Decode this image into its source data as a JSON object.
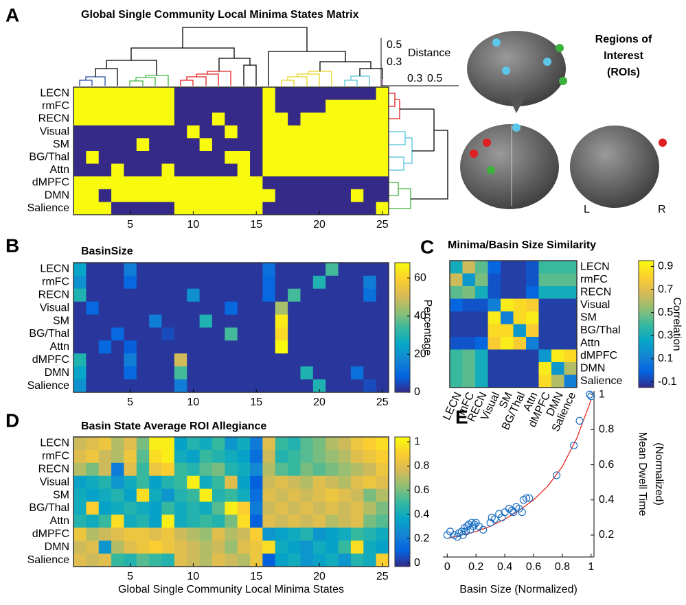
{
  "panel_labels": [
    "A",
    "B",
    "C",
    "D",
    "E"
  ],
  "roi_title": [
    "Regions of",
    "Interest",
    "(ROIs)"
  ],
  "hemisphere_labels": [
    "L",
    "R"
  ],
  "chart_data": [
    {
      "type": "heatmap",
      "title": "Global Single Community Local Minima States Matrix",
      "categories": [
        "LECN",
        "rmFC",
        "RECN",
        "Visual",
        "SM",
        "BG/Thal",
        "Attn",
        "dMPFC",
        "DMN",
        "Salience"
      ],
      "colormap": "parula",
      "clim": [
        0,
        1
      ],
      "xlim": [
        0.5,
        25.5
      ],
      "xticks": [
        5,
        10,
        15,
        20,
        25
      ],
      "dendrogram_label": "Distance",
      "dendrogram_ticks_top": [
        0.5,
        0.3
      ],
      "dendrogram_ticks_right": [
        0.3,
        0.5
      ],
      "values": [
        [
          1,
          1,
          1,
          1,
          1,
          1,
          1,
          1,
          0,
          0,
          0,
          0,
          0,
          0,
          0,
          1,
          0,
          0,
          0,
          0,
          0,
          0,
          0,
          0,
          1
        ],
        [
          1,
          1,
          1,
          1,
          1,
          1,
          1,
          1,
          0,
          0,
          0,
          0,
          0,
          0,
          0,
          1,
          0,
          0,
          0,
          0,
          1,
          1,
          1,
          1,
          1
        ],
        [
          1,
          1,
          1,
          1,
          1,
          1,
          1,
          1,
          0,
          0,
          0,
          1,
          0,
          0,
          0,
          1,
          1,
          0,
          1,
          1,
          1,
          1,
          1,
          1,
          1
        ],
        [
          0,
          0,
          0,
          0,
          0,
          0,
          0,
          0,
          0,
          1,
          0,
          0,
          1,
          0,
          0,
          1,
          1,
          1,
          1,
          1,
          1,
          1,
          1,
          1,
          1
        ],
        [
          0,
          0,
          0,
          0,
          0,
          1,
          0,
          0,
          0,
          0,
          1,
          0,
          0,
          0,
          0,
          1,
          1,
          1,
          1,
          1,
          1,
          1,
          1,
          1,
          1
        ],
        [
          0,
          1,
          0,
          0,
          0,
          0,
          0,
          0,
          0,
          0,
          0,
          0,
          1,
          1,
          0,
          1,
          1,
          1,
          1,
          1,
          1,
          1,
          1,
          1,
          1
        ],
        [
          0,
          0,
          0,
          1,
          0,
          0,
          0,
          1,
          0,
          0,
          0,
          0,
          0,
          1,
          0,
          1,
          1,
          1,
          1,
          1,
          1,
          1,
          1,
          1,
          1
        ],
        [
          1,
          1,
          1,
          1,
          1,
          1,
          1,
          1,
          1,
          1,
          1,
          1,
          1,
          1,
          1,
          0,
          0,
          0,
          0,
          0,
          0,
          0,
          0,
          0,
          0
        ],
        [
          1,
          1,
          0,
          1,
          1,
          1,
          1,
          1,
          1,
          1,
          1,
          1,
          1,
          1,
          1,
          1,
          0,
          0,
          0,
          0,
          0,
          0,
          1,
          0,
          0
        ],
        [
          1,
          1,
          1,
          0,
          0,
          0,
          0,
          0,
          1,
          1,
          1,
          1,
          1,
          1,
          1,
          0,
          0,
          0,
          0,
          0,
          0,
          0,
          0,
          0,
          1
        ]
      ]
    },
    {
      "type": "heatmap",
      "title": "BasinSize",
      "categories": [
        "LECN",
        "rmFC",
        "RECN",
        "Visual",
        "SM",
        "BG/Thal",
        "Attn",
        "dMPFC",
        "DMN",
        "Salience"
      ],
      "colormap": "parula",
      "clim": [
        0,
        68
      ],
      "xlim": [
        0.5,
        25.5
      ],
      "xticks": [
        5,
        10,
        15,
        20,
        25
      ],
      "colorbar_ticks": [
        0,
        20,
        40,
        60
      ],
      "colorbar_label": "Percentage",
      "values": [
        [
          25,
          2,
          2,
          2,
          15,
          2,
          2,
          2,
          2,
          2,
          2,
          2,
          2,
          2,
          2,
          12,
          2,
          2,
          2,
          2,
          35,
          2,
          2,
          2,
          2
        ],
        [
          20,
          2,
          2,
          2,
          10,
          2,
          2,
          2,
          2,
          2,
          2,
          2,
          2,
          2,
          2,
          10,
          2,
          2,
          2,
          30,
          2,
          2,
          2,
          15,
          2
        ],
        [
          30,
          2,
          2,
          2,
          2,
          2,
          2,
          2,
          2,
          20,
          2,
          2,
          2,
          2,
          2,
          10,
          2,
          35,
          2,
          2,
          2,
          2,
          2,
          12,
          2
        ],
        [
          2,
          10,
          2,
          2,
          2,
          2,
          2,
          2,
          2,
          2,
          2,
          2,
          10,
          2,
          2,
          2,
          45,
          2,
          2,
          2,
          2,
          2,
          2,
          2,
          2
        ],
        [
          2,
          2,
          2,
          2,
          2,
          2,
          15,
          2,
          2,
          2,
          30,
          2,
          2,
          2,
          2,
          2,
          65,
          2,
          2,
          2,
          2,
          2,
          2,
          2,
          2
        ],
        [
          2,
          2,
          2,
          10,
          2,
          2,
          2,
          5,
          2,
          2,
          2,
          2,
          35,
          2,
          2,
          2,
          62,
          2,
          2,
          2,
          2,
          2,
          2,
          2,
          2
        ],
        [
          2,
          2,
          10,
          2,
          8,
          2,
          2,
          2,
          2,
          2,
          2,
          2,
          2,
          2,
          2,
          2,
          68,
          2,
          2,
          2,
          2,
          2,
          2,
          2,
          2
        ],
        [
          30,
          2,
          2,
          2,
          15,
          2,
          2,
          2,
          50,
          2,
          2,
          2,
          2,
          2,
          2,
          2,
          2,
          2,
          2,
          2,
          2,
          2,
          2,
          2,
          2
        ],
        [
          25,
          2,
          2,
          2,
          10,
          2,
          2,
          2,
          35,
          2,
          2,
          2,
          2,
          2,
          2,
          2,
          2,
          2,
          30,
          2,
          2,
          2,
          12,
          2,
          2
        ],
        [
          20,
          2,
          2,
          2,
          2,
          2,
          2,
          2,
          15,
          2,
          2,
          2,
          2,
          2,
          2,
          2,
          2,
          2,
          2,
          30,
          2,
          2,
          2,
          5,
          2
        ]
      ]
    },
    {
      "type": "heatmap",
      "title": "Minima/Basin Size Similarity",
      "categories": [
        "LECN",
        "rmFC",
        "RECN",
        "Visual",
        "SM",
        "BG/Thal",
        "Attn",
        "dMPFC",
        "DMN",
        "Salience"
      ],
      "colormap": "parula",
      "clim": [
        -0.15,
        0.95
      ],
      "colorbar_ticks": [
        -0.1,
        0.1,
        0.3,
        0.5,
        0.7,
        0.9
      ],
      "colorbar_label": "Correlation",
      "values": [
        [
          0.3,
          0.65,
          0.45,
          0,
          -0.1,
          -0.1,
          -0.05,
          0.4,
          0.4,
          0.4
        ],
        [
          0.65,
          0.2,
          0.5,
          -0.05,
          -0.1,
          -0.1,
          -0.05,
          0.45,
          0.45,
          0.45
        ],
        [
          0.45,
          0.5,
          0.3,
          -0.05,
          -0.1,
          -0.1,
          0,
          0.3,
          0.3,
          0.3
        ],
        [
          0,
          -0.05,
          -0.05,
          0.1,
          0.9,
          0.85,
          0.8,
          -0.1,
          -0.1,
          -0.1
        ],
        [
          -0.1,
          -0.1,
          -0.1,
          0.9,
          0.1,
          0.85,
          0.9,
          -0.1,
          -0.1,
          -0.1
        ],
        [
          -0.1,
          -0.1,
          -0.1,
          0.85,
          0.85,
          0.2,
          0.8,
          -0.1,
          -0.1,
          -0.1
        ],
        [
          -0.05,
          -0.05,
          0,
          0.8,
          0.9,
          0.8,
          0.1,
          -0.1,
          -0.1,
          -0.1
        ],
        [
          0.4,
          0.45,
          0.3,
          -0.1,
          -0.1,
          -0.1,
          -0.1,
          0.2,
          0.9,
          0.85
        ],
        [
          0.4,
          0.45,
          0.3,
          -0.1,
          -0.1,
          -0.1,
          -0.1,
          0.9,
          0.2,
          0.6
        ],
        [
          0.4,
          0.45,
          0.3,
          -0.1,
          -0.1,
          -0.1,
          -0.1,
          0.85,
          0.6,
          0.1
        ]
      ]
    },
    {
      "type": "heatmap",
      "title": "Basin State Average ROI Allegiance",
      "categories": [
        "LECN",
        "rmFC",
        "RECN",
        "Visual",
        "SM",
        "BG/Thal",
        "Attn",
        "dMPFC",
        "DMN",
        "Salience"
      ],
      "colormap": "parula",
      "clim": [
        -0.03,
        1.04
      ],
      "xlim": [
        0.5,
        25.5
      ],
      "xticks": [
        5,
        10,
        15,
        20,
        25
      ],
      "colorbar_ticks": [
        0,
        0.2,
        0.4,
        0.6,
        0.8,
        1
      ],
      "x_label": "Global Single Community Local Minima States",
      "values": [
        [
          0.75,
          0.8,
          0.85,
          0.7,
          0.8,
          0.6,
          1,
          1,
          0.35,
          0.45,
          0.4,
          0.5,
          0.3,
          0.4,
          0.2,
          0.8,
          0.5,
          0.45,
          0.55,
          0.6,
          0.7,
          0.75,
          0.85,
          0.9,
          0.95
        ],
        [
          0.8,
          0.85,
          0.75,
          0.7,
          0.85,
          0.55,
          0.95,
          1,
          0.4,
          0.35,
          0.5,
          0.45,
          0.4,
          0.35,
          0.15,
          0.75,
          0.45,
          0.5,
          0.55,
          0.6,
          0.65,
          0.7,
          0.8,
          0.85,
          0.9
        ],
        [
          0.7,
          0.6,
          0.75,
          0.2,
          0.8,
          0.5,
          0.85,
          0.9,
          0.5,
          0.45,
          0.55,
          0.6,
          0.45,
          0.4,
          0.25,
          0.7,
          0.55,
          0.5,
          0.6,
          0.55,
          0.6,
          0.65,
          0.7,
          0.75,
          0.85
        ],
        [
          0.35,
          0.4,
          0.45,
          0.3,
          0.4,
          0.5,
          0.35,
          0.45,
          0.5,
          1,
          0.4,
          0.5,
          0.8,
          0.35,
          0.1,
          0.75,
          0.8,
          0.75,
          0.7,
          0.8,
          0.75,
          0.7,
          0.8,
          0.85,
          0.8
        ],
        [
          0.4,
          0.35,
          0.4,
          0.45,
          0.35,
          0.95,
          0.4,
          0.3,
          0.45,
          0.5,
          1,
          0.45,
          0.5,
          0.4,
          0.15,
          0.8,
          0.75,
          0.8,
          0.75,
          0.8,
          0.85,
          0.8,
          0.75,
          0.6,
          0.7
        ],
        [
          0.4,
          0.9,
          0.35,
          0.4,
          0.45,
          0.4,
          0.35,
          0.5,
          0.4,
          0.45,
          0.4,
          0.55,
          1,
          0.9,
          0.2,
          0.75,
          0.8,
          0.75,
          0.8,
          0.75,
          0.8,
          0.75,
          0.8,
          0.7,
          0.6
        ],
        [
          0.45,
          0.4,
          0.5,
          0.95,
          0.4,
          0.45,
          0.35,
          1,
          0.4,
          0.45,
          0.5,
          0.45,
          0.6,
          0.95,
          0.1,
          0.8,
          0.75,
          0.8,
          0.75,
          0.8,
          0.7,
          0.75,
          0.8,
          0.6,
          0.55
        ],
        [
          0.85,
          0.7,
          0.75,
          0.8,
          0.85,
          0.85,
          0.8,
          0.85,
          0.75,
          0.7,
          0.65,
          0.8,
          0.7,
          0.75,
          0.9,
          0.3,
          0.35,
          0.4,
          0.45,
          0.3,
          0.35,
          0.4,
          0.5,
          0.45,
          0.4
        ],
        [
          0.75,
          0.8,
          0.3,
          0.7,
          0.8,
          0.85,
          0.9,
          0.85,
          0.8,
          0.75,
          0.7,
          0.75,
          0.65,
          0.8,
          0.85,
          0.95,
          0.4,
          0.35,
          0.3,
          0.4,
          0.35,
          0.5,
          0.95,
          0.4,
          0.35
        ],
        [
          0.8,
          0.75,
          0.8,
          0.5,
          0.45,
          0.55,
          0.5,
          0.45,
          0.8,
          0.75,
          0.7,
          0.8,
          0.75,
          0.7,
          0.85,
          0.1,
          0.35,
          0.4,
          0.3,
          0.35,
          0.4,
          0.3,
          0.45,
          0.4,
          0.9
        ]
      ]
    },
    {
      "type": "scatter",
      "x_label": "Basin Size (Normalized)",
      "y_label": [
        "Mean Dwell Time",
        "(Normalized)"
      ],
      "xlim": [
        -0.03,
        1.02
      ],
      "ylim": [
        0.075,
        1.02
      ],
      "xticks": [
        0,
        0.2,
        0.4,
        0.6,
        0.8,
        1
      ],
      "yticks": [
        0.2,
        0.4,
        0.6,
        0.8,
        1
      ],
      "color": "#1a6fc4",
      "x": [
        0,
        0.02,
        0.05,
        0.07,
        0.08,
        0.1,
        0.11,
        0.12,
        0.13,
        0.14,
        0.15,
        0.16,
        0.17,
        0.18,
        0.19,
        0.2,
        0.22,
        0.25,
        0.3,
        0.31,
        0.33,
        0.36,
        0.38,
        0.4,
        0.43,
        0.45,
        0.46,
        0.48,
        0.5,
        0.52,
        0.53,
        0.55,
        0.57,
        0.76,
        0.88,
        0.92,
        0.99,
        1
      ],
      "y": [
        0.2,
        0.22,
        0.2,
        0.19,
        0.21,
        0.22,
        0.2,
        0.24,
        0.22,
        0.25,
        0.26,
        0.23,
        0.27,
        0.25,
        0.26,
        0.27,
        0.25,
        0.23,
        0.27,
        0.3,
        0.29,
        0.32,
        0.3,
        0.33,
        0.35,
        0.34,
        0.33,
        0.36,
        0.35,
        0.33,
        0.4,
        0.41,
        0.41,
        0.54,
        0.71,
        0.85,
        1,
        0.99
      ],
      "fit": {
        "color": "#e3261f",
        "x": [
          0,
          0.1,
          0.2,
          0.3,
          0.4,
          0.5,
          0.6,
          0.7,
          0.8,
          0.9,
          1
        ],
        "y": [
          0.18,
          0.2,
          0.22,
          0.25,
          0.29,
          0.34,
          0.4,
          0.48,
          0.59,
          0.75,
          0.97
        ]
      }
    }
  ]
}
